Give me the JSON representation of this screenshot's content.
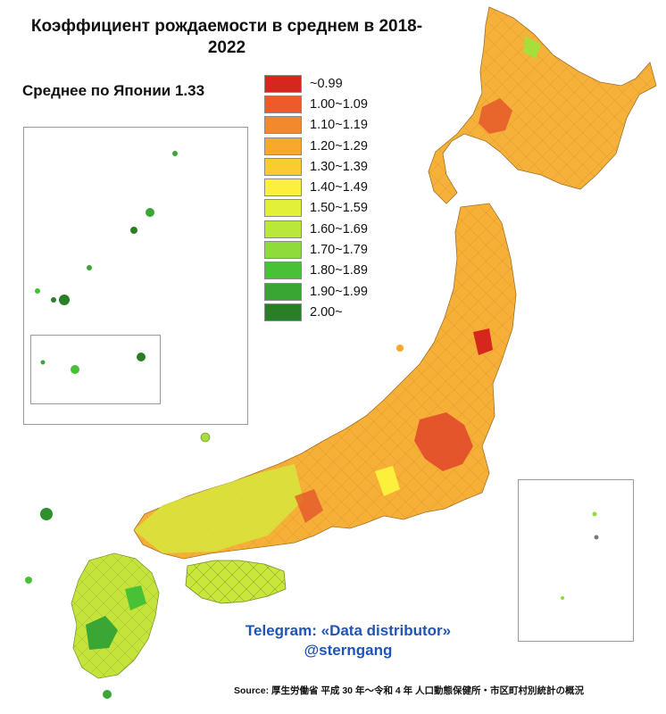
{
  "title": "Коэффициент рождаемости в среднем в 2018-2022",
  "subtitle": "Среднее по Японии 1.33",
  "legend": [
    {
      "label": "~0.99",
      "color": "#d7261e"
    },
    {
      "label": "1.00~1.09",
      "color": "#ee5a2a"
    },
    {
      "label": "1.10~1.19",
      "color": "#f18a2e"
    },
    {
      "label": "1.20~1.29",
      "color": "#f7a92e"
    },
    {
      "label": "1.30~1.39",
      "color": "#fbcb34"
    },
    {
      "label": "1.40~1.49",
      "color": "#fdf03c"
    },
    {
      "label": "1.50~1.59",
      "color": "#e3f03a"
    },
    {
      "label": "1.60~1.69",
      "color": "#b9e83b"
    },
    {
      "label": "1.70~1.79",
      "color": "#8edb3a"
    },
    {
      "label": "1.80~1.89",
      "color": "#47c237"
    },
    {
      "label": "1.90~1.99",
      "color": "#39a633"
    },
    {
      "label": "2.00~",
      "color": "#2a7f26"
    }
  ],
  "credit": {
    "line1": "Telegram: «Data distributor»",
    "line2": "@sterngang"
  },
  "source": "Source: 厚生労働省 平成 30 年〜令和 4 年 人口動態保健所・市区町村別統計の概況"
}
